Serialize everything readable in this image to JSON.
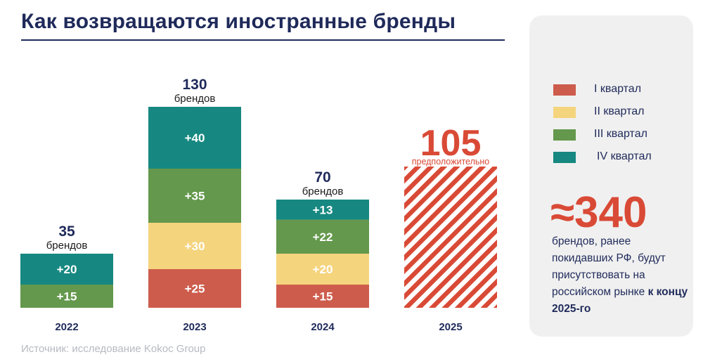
{
  "title": "Как возвращаются иностранные бренды",
  "source": "Источник: исследование Kokoc Group",
  "colors": {
    "q1": "#cd5c4c",
    "q2": "#f5d47e",
    "q3": "#64984c",
    "q4": "#168881",
    "accent": "#d94a36",
    "navy": "#1f2a5a"
  },
  "chart_data": {
    "type": "bar",
    "stacked": true,
    "categories": [
      "2022",
      "2023",
      "2024",
      "2025"
    ],
    "series": [
      {
        "name": "I квартал",
        "color_key": "q1",
        "values": [
          0,
          25,
          15,
          0
        ]
      },
      {
        "name": "II квартал",
        "color_key": "q2",
        "values": [
          0,
          30,
          20,
          0
        ]
      },
      {
        "name": "III квартал",
        "color_key": "q3",
        "values": [
          15,
          35,
          22,
          0
        ]
      },
      {
        "name": "IV квартал",
        "color_key": "q4",
        "values": [
          20,
          40,
          13,
          0
        ]
      }
    ],
    "segment_labels": [
      [
        null,
        null,
        "+15",
        "+20"
      ],
      [
        "+25",
        "+30",
        "+35",
        "+40"
      ],
      [
        "+15",
        "+20",
        "+22",
        "+13"
      ],
      [
        null,
        null,
        null,
        null
      ]
    ],
    "totals": [
      {
        "value": "35",
        "label": "брендов"
      },
      {
        "value": "130",
        "label": "брендов"
      },
      {
        "value": "70",
        "label": "брендов"
      },
      {
        "value": "105",
        "label": "предположительно"
      }
    ],
    "forecast": {
      "category": "2025",
      "value": 105,
      "style": "hatched"
    },
    "ylim": [
      0,
      130
    ],
    "grid": false
  },
  "legend": {
    "items": [
      {
        "label": "I квартал",
        "color_key": "q1"
      },
      {
        "label": "II квартал",
        "color_key": "q2"
      },
      {
        "label": "III квартал",
        "color_key": "q3"
      },
      {
        "label": "IV квартал",
        "color_key": "q4"
      }
    ]
  },
  "summary": {
    "big_number": "≈340",
    "text": "брендов, ранее покидавших РФ, будут присутствовать на российском рынке",
    "text_bold": "к концу 2025-го"
  }
}
